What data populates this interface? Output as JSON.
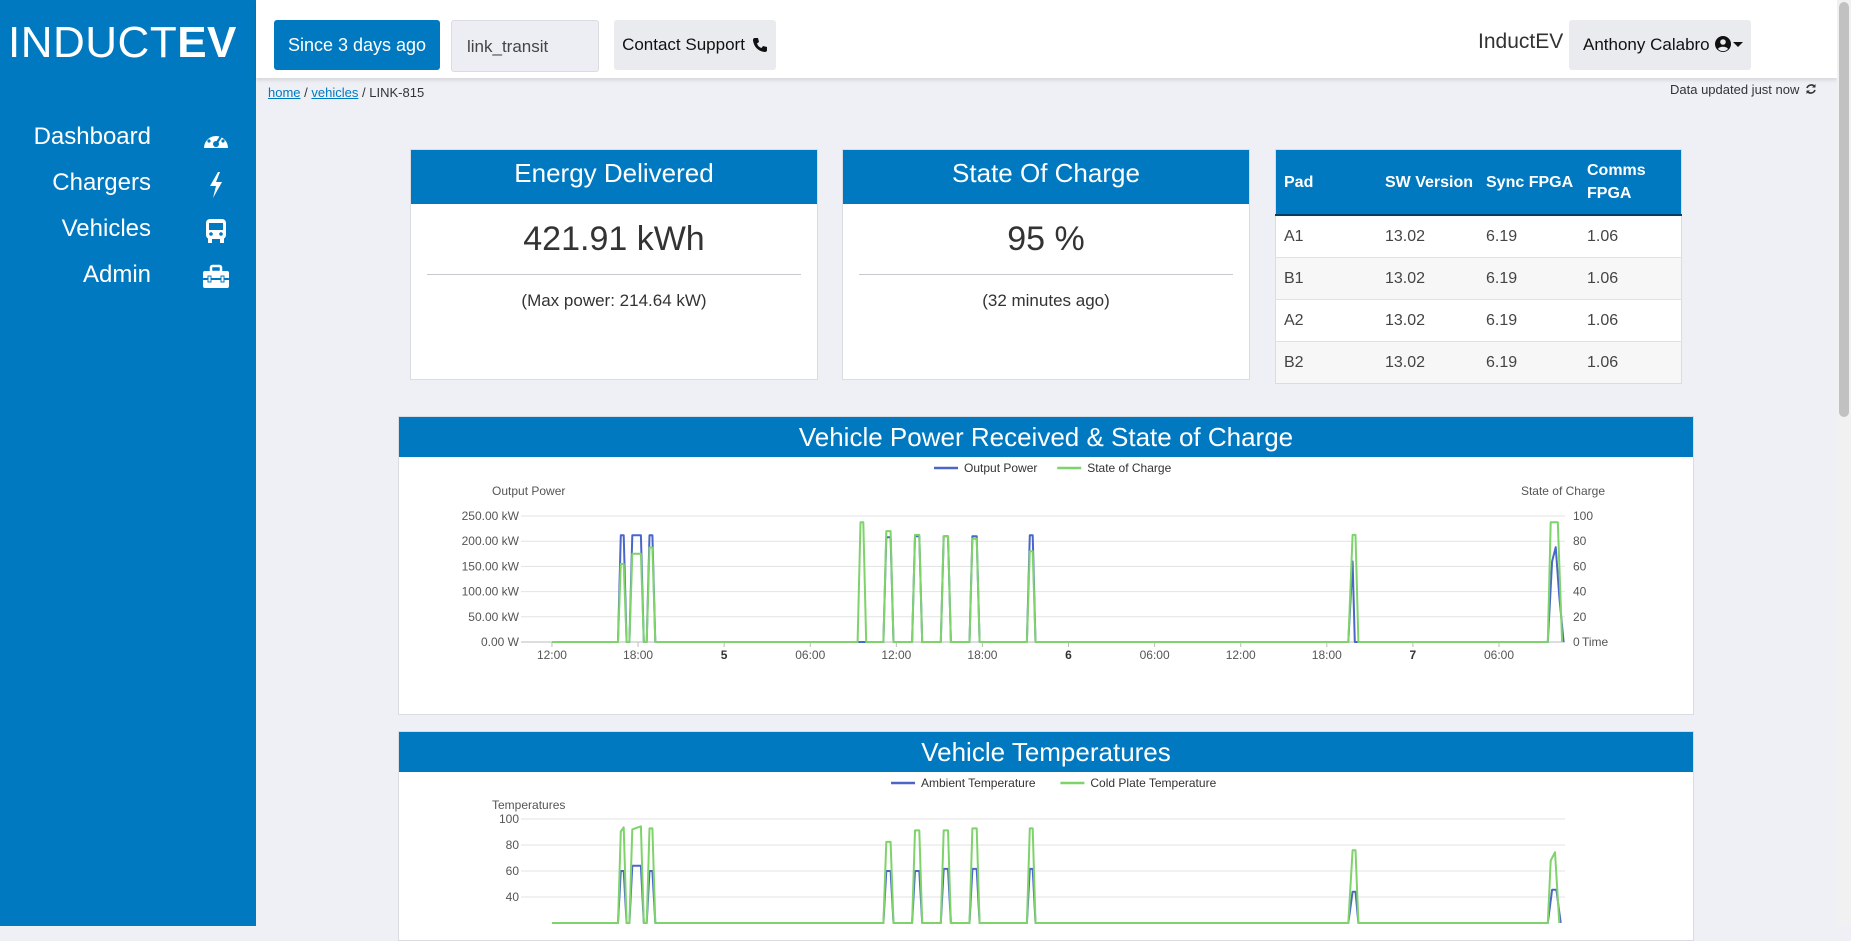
{
  "brand": {
    "logo_light": "INDUCT",
    "logo_bold": "EV",
    "name": "InductEV"
  },
  "sidebar": {
    "items": [
      {
        "label": "Dashboard",
        "icon": "gauge-icon"
      },
      {
        "label": "Chargers",
        "icon": "bolt-icon"
      },
      {
        "label": "Vehicles",
        "icon": "bus-icon"
      },
      {
        "label": "Admin",
        "icon": "toolbox-icon"
      }
    ]
  },
  "toolbar": {
    "since_label": "Since 3 days ago",
    "fleet_value": "link_transit",
    "support_label": "Contact Support"
  },
  "user": {
    "name": "Anthony Calabro"
  },
  "breadcrumb": {
    "home": "home",
    "vehicles": "vehicles",
    "current": "LINK-815",
    "sep": "/"
  },
  "status": {
    "updated": "Data updated just now"
  },
  "cards": {
    "energy": {
      "title": "Energy Delivered",
      "value": "421.91 kWh",
      "sub": "(Max power: 214.64 kW)"
    },
    "soc": {
      "title": "State Of Charge",
      "value": "95 %",
      "sub": "(32 minutes ago)"
    }
  },
  "pad_table": {
    "headers": [
      "Pad",
      "SW Version",
      "Sync FPGA",
      "Comms FPGA"
    ],
    "rows": [
      [
        "A1",
        "13.02",
        "6.19",
        "1.06"
      ],
      [
        "B1",
        "13.02",
        "6.19",
        "1.06"
      ],
      [
        "A2",
        "13.02",
        "6.19",
        "1.06"
      ],
      [
        "B2",
        "13.02",
        "6.19",
        "1.06"
      ]
    ]
  },
  "colors": {
    "accent": "#0079c1",
    "series_blue": "#4a66c9",
    "series_green": "#7ed36a"
  },
  "chart_data": [
    {
      "type": "line",
      "title": "Vehicle Power Received & State of Charge",
      "y_label_left": "Output Power",
      "y_label_right": "State of Charge",
      "x_axis_title": "Time",
      "x_tick_labels": [
        "12:00",
        "18:00",
        "5",
        "06:00",
        "12:00",
        "18:00",
        "6",
        "06:00",
        "12:00",
        "18:00",
        "7",
        "06:00"
      ],
      "bold_ticks": [
        "5",
        "6",
        "7"
      ],
      "y_left_ticks": [
        "0.00 W",
        "50.00 kW",
        "100.00 kW",
        "150.00 kW",
        "200.00 kW",
        "250.00 kW"
      ],
      "y_right_ticks": [
        "0",
        "20",
        "40",
        "60",
        "80",
        "100"
      ],
      "x_range_hours": [
        -1.6,
        70.6
      ],
      "ylim_left_kw": [
        0,
        250
      ],
      "ylim_right": [
        0,
        100
      ],
      "legend_position": "top-center",
      "grid": true,
      "series": [
        {
          "name": "Output Power",
          "color": "#4a66c9",
          "axis": "left",
          "unit": "kW",
          "points": [
            [
              0,
              0
            ],
            [
              4.6,
              0
            ],
            [
              4.8,
              212
            ],
            [
              5.0,
              212
            ],
            [
              5.2,
              0
            ],
            [
              5.4,
              0
            ],
            [
              5.6,
              212
            ],
            [
              6.2,
              212
            ],
            [
              6.4,
              0
            ],
            [
              6.6,
              0
            ],
            [
              6.8,
              212
            ],
            [
              7.0,
              212
            ],
            [
              7.2,
              0
            ],
            [
              23.1,
              0
            ],
            [
              23.3,
              208
            ],
            [
              23.6,
              208
            ],
            [
              23.8,
              0
            ],
            [
              25.1,
              0
            ],
            [
              25.3,
              210
            ],
            [
              25.6,
              210
            ],
            [
              25.8,
              0
            ],
            [
              27.1,
              0
            ],
            [
              27.3,
              210
            ],
            [
              27.6,
              210
            ],
            [
              27.8,
              0
            ],
            [
              29.1,
              0
            ],
            [
              29.3,
              210
            ],
            [
              29.6,
              210
            ],
            [
              29.8,
              0
            ],
            [
              33.1,
              0
            ],
            [
              33.3,
              212
            ],
            [
              33.5,
              212
            ],
            [
              33.7,
              0
            ],
            [
              55.5,
              0
            ],
            [
              55.8,
              160
            ],
            [
              55.95,
              0
            ],
            [
              69.4,
              0
            ],
            [
              69.7,
              160
            ],
            [
              69.95,
              188
            ],
            [
              70.2,
              90
            ],
            [
              70.5,
              0
            ]
          ]
        },
        {
          "name": "State of Charge",
          "color": "#7ed36a",
          "axis": "right",
          "unit": "%",
          "points": [
            [
              0,
              0
            ],
            [
              4.6,
              0
            ],
            [
              4.8,
              62
            ],
            [
              5.0,
              62
            ],
            [
              5.2,
              0
            ],
            [
              5.4,
              0
            ],
            [
              5.6,
              70
            ],
            [
              6.2,
              70
            ],
            [
              6.4,
              0
            ],
            [
              6.6,
              0
            ],
            [
              6.8,
              75
            ],
            [
              7.0,
              75
            ],
            [
              7.2,
              0
            ],
            [
              21.3,
              0
            ],
            [
              21.5,
              95
            ],
            [
              21.7,
              95
            ],
            [
              21.9,
              0
            ],
            [
              23.1,
              0
            ],
            [
              23.3,
              88
            ],
            [
              23.6,
              88
            ],
            [
              23.8,
              0
            ],
            [
              25.1,
              0
            ],
            [
              25.3,
              85
            ],
            [
              25.6,
              85
            ],
            [
              25.8,
              0
            ],
            [
              27.1,
              0
            ],
            [
              27.3,
              84
            ],
            [
              27.6,
              84
            ],
            [
              27.8,
              0
            ],
            [
              29.1,
              0
            ],
            [
              29.3,
              82
            ],
            [
              29.6,
              82
            ],
            [
              29.8,
              0
            ],
            [
              33.1,
              0
            ],
            [
              33.3,
              72
            ],
            [
              33.5,
              72
            ],
            [
              33.7,
              0
            ],
            [
              55.5,
              0
            ],
            [
              55.8,
              85
            ],
            [
              56.0,
              85
            ],
            [
              56.2,
              0
            ],
            [
              69.4,
              0
            ],
            [
              69.6,
              95
            ],
            [
              70.1,
              95
            ],
            [
              70.4,
              0
            ]
          ]
        }
      ]
    },
    {
      "type": "line",
      "title": "Vehicle Temperatures",
      "y_label_left": "Temperatures",
      "y_left_ticks": [
        "100",
        "80",
        "60",
        "40"
      ],
      "ylim_left": [
        0,
        100
      ],
      "x_range_hours": [
        -1.6,
        70.6
      ],
      "legend_position": "top-center",
      "grid": true,
      "series": [
        {
          "name": "Ambient Temperature",
          "color": "#4a66c9",
          "points": [
            [
              0,
              0
            ],
            [
              4.6,
              0
            ],
            [
              4.8,
              50
            ],
            [
              5.0,
              50
            ],
            [
              5.2,
              0
            ],
            [
              5.4,
              0
            ],
            [
              5.6,
              55
            ],
            [
              6.2,
              55
            ],
            [
              6.4,
              0
            ],
            [
              6.6,
              0
            ],
            [
              6.8,
              50
            ],
            [
              7.0,
              50
            ],
            [
              7.2,
              0
            ],
            [
              23.1,
              0
            ],
            [
              23.3,
              50
            ],
            [
              23.6,
              50
            ],
            [
              23.8,
              0
            ],
            [
              25.1,
              0
            ],
            [
              25.3,
              50
            ],
            [
              25.6,
              50
            ],
            [
              25.8,
              0
            ],
            [
              27.1,
              0
            ],
            [
              27.3,
              52
            ],
            [
              27.6,
              52
            ],
            [
              27.8,
              0
            ],
            [
              29.1,
              0
            ],
            [
              29.3,
              52
            ],
            [
              29.6,
              52
            ],
            [
              29.8,
              0
            ],
            [
              33.1,
              0
            ],
            [
              33.3,
              52
            ],
            [
              33.5,
              52
            ],
            [
              33.7,
              0
            ],
            [
              55.5,
              0
            ],
            [
              55.8,
              30
            ],
            [
              56.0,
              30
            ],
            [
              56.2,
              0
            ],
            [
              69.4,
              0
            ],
            [
              69.7,
              32
            ],
            [
              70.0,
              32
            ],
            [
              70.3,
              0
            ]
          ]
        },
        {
          "name": "Cold Plate Temperature",
          "color": "#7ed36a",
          "points": [
            [
              0,
              0
            ],
            [
              4.6,
              0
            ],
            [
              4.8,
              88
            ],
            [
              5.0,
              92
            ],
            [
              5.2,
              0
            ],
            [
              5.4,
              0
            ],
            [
              5.6,
              90
            ],
            [
              6.2,
              93
            ],
            [
              6.4,
              0
            ],
            [
              6.6,
              0
            ],
            [
              6.8,
              91
            ],
            [
              7.0,
              91
            ],
            [
              7.2,
              0
            ],
            [
              23.1,
              0
            ],
            [
              23.3,
              78
            ],
            [
              23.6,
              78
            ],
            [
              23.8,
              0
            ],
            [
              25.1,
              0
            ],
            [
              25.3,
              89
            ],
            [
              25.6,
              89
            ],
            [
              25.8,
              0
            ],
            [
              27.1,
              0
            ],
            [
              27.3,
              89
            ],
            [
              27.6,
              89
            ],
            [
              27.8,
              0
            ],
            [
              29.1,
              0
            ],
            [
              29.3,
              91
            ],
            [
              29.6,
              91
            ],
            [
              29.8,
              0
            ],
            [
              33.1,
              0
            ],
            [
              33.3,
              91
            ],
            [
              33.5,
              91
            ],
            [
              33.7,
              0
            ],
            [
              55.5,
              0
            ],
            [
              55.8,
              70
            ],
            [
              56.0,
              70
            ],
            [
              56.2,
              0
            ],
            [
              69.4,
              0
            ],
            [
              69.6,
              60
            ],
            [
              69.9,
              68
            ],
            [
              70.2,
              0
            ]
          ]
        }
      ]
    }
  ]
}
